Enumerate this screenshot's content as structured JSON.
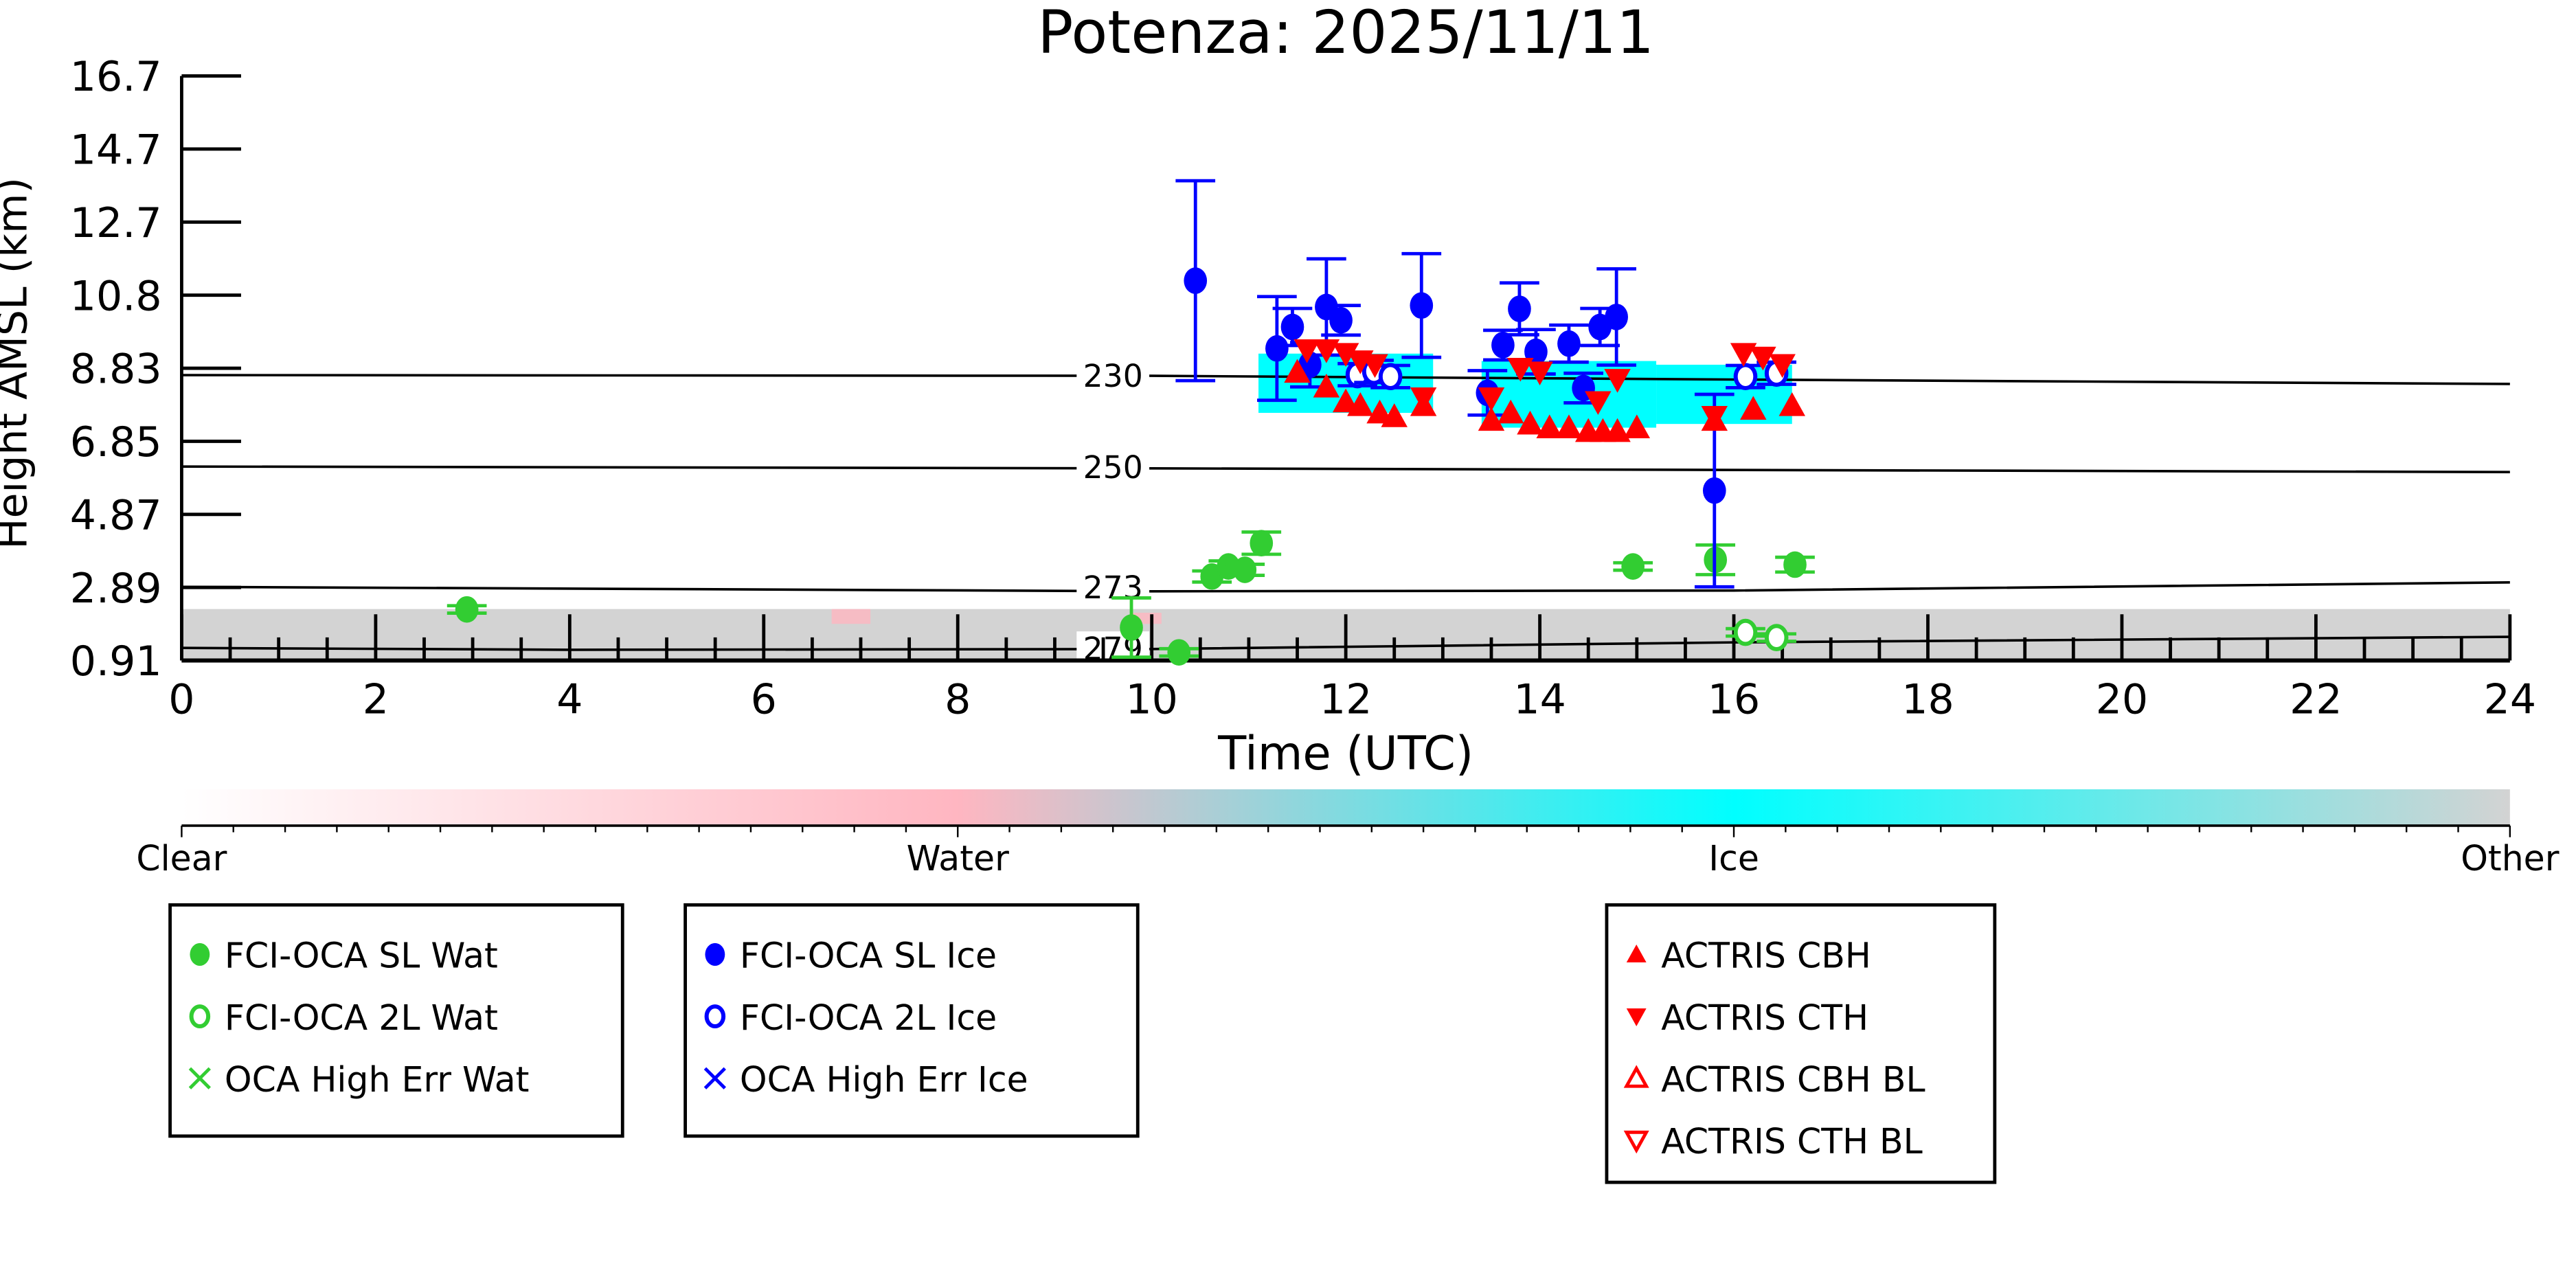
{
  "chart_data": {
    "type": "scatter",
    "title": "Potenza: 2025/11/11",
    "xlabel": "Time (UTC)",
    "ylabel": "Height AMSL (km)",
    "xlim": [
      0,
      24
    ],
    "ylim": [
      0.91,
      16.7
    ],
    "xticks": [
      "0",
      "2",
      "4",
      "6",
      "8",
      "10",
      "12",
      "14",
      "16",
      "18",
      "20",
      "22",
      "24"
    ],
    "yticks": [
      "0.91",
      "2.89",
      "4.87",
      "6.85",
      "8.83",
      "10.8",
      "12.7",
      "14.7",
      "16.7"
    ],
    "grid": false,
    "series": [
      {
        "name": "FCI-OCA SL Wat",
        "marker": "filled-circle",
        "color": "#32cd32",
        "points": [
          [
            2.94,
            2.29,
            0.1
          ],
          [
            9.79,
            1.8,
            0.8
          ],
          [
            10.28,
            1.13,
            0.1
          ],
          [
            10.62,
            3.18,
            0.15
          ],
          [
            10.79,
            3.45,
            0.15
          ],
          [
            10.96,
            3.36,
            0.15
          ],
          [
            11.13,
            4.08,
            0.3
          ],
          [
            14.96,
            3.45,
            0.1
          ],
          [
            15.81,
            3.63,
            0.4
          ],
          [
            16.63,
            3.5,
            0.2
          ]
        ]
      },
      {
        "name": "FCI-OCA 2L Wat",
        "marker": "open-circle",
        "color": "#32cd32",
        "points": [
          [
            16.12,
            1.67,
            0.1
          ],
          [
            16.44,
            1.53,
            0.1
          ]
        ]
      },
      {
        "name": "OCA High Err Wat",
        "marker": "x",
        "color": "#32cd32",
        "points": []
      },
      {
        "name": "FCI-OCA SL Ice",
        "marker": "filled-circle",
        "color": "#0000ff",
        "points": [
          [
            10.45,
            11.17,
            2.7
          ],
          [
            11.29,
            9.34,
            1.4
          ],
          [
            11.45,
            9.92,
            0.5
          ],
          [
            11.63,
            8.9,
            0.6
          ],
          [
            11.8,
            10.46,
            1.3
          ],
          [
            11.95,
            10.1,
            0.4
          ],
          [
            12.78,
            10.5,
            1.4
          ],
          [
            13.46,
            8.14,
            0.6
          ],
          [
            13.62,
            9.43,
            0.4
          ],
          [
            13.79,
            10.41,
            0.7
          ],
          [
            13.96,
            9.25,
            0.6
          ],
          [
            14.3,
            9.47,
            0.5
          ],
          [
            14.45,
            8.27,
            0.4
          ],
          [
            14.62,
            9.92,
            0.5
          ],
          [
            14.79,
            10.19,
            1.3
          ],
          [
            15.8,
            5.5,
            2.6
          ]
        ]
      },
      {
        "name": "FCI-OCA 2L Ice",
        "marker": "open-circle",
        "color": "#0000ff",
        "points": [
          [
            12.12,
            8.63,
            0.3
          ],
          [
            12.29,
            8.72,
            0.3
          ],
          [
            12.46,
            8.58,
            0.3
          ],
          [
            16.12,
            8.58,
            0.3
          ],
          [
            16.44,
            8.67,
            0.3
          ]
        ]
      },
      {
        "name": "OCA High Err Ice",
        "marker": "x",
        "color": "#0000ff",
        "points": []
      },
      {
        "name": "ACTRIS CBH",
        "marker": "triangle-up",
        "color": "#ff0000",
        "points": [
          [
            11.5,
            8.7
          ],
          [
            11.8,
            8.3
          ],
          [
            12.0,
            7.9
          ],
          [
            12.15,
            7.8
          ],
          [
            12.35,
            7.6
          ],
          [
            12.5,
            7.5
          ],
          [
            12.8,
            7.8
          ],
          [
            13.5,
            7.4
          ],
          [
            13.7,
            7.6
          ],
          [
            13.9,
            7.3
          ],
          [
            14.1,
            7.2
          ],
          [
            14.3,
            7.2
          ],
          [
            14.5,
            7.1
          ],
          [
            14.65,
            7.1
          ],
          [
            14.8,
            7.1
          ],
          [
            15.0,
            7.2
          ],
          [
            15.8,
            7.4
          ],
          [
            16.2,
            7.7
          ],
          [
            16.6,
            7.8
          ]
        ]
      },
      {
        "name": "ACTRIS CTH",
        "marker": "triangle-down",
        "color": "#ff0000",
        "points": [
          [
            11.6,
            9.3
          ],
          [
            11.8,
            9.3
          ],
          [
            12.0,
            9.2
          ],
          [
            12.15,
            9.0
          ],
          [
            12.3,
            8.9
          ],
          [
            12.8,
            8.0
          ],
          [
            13.5,
            8.0
          ],
          [
            13.8,
            8.8
          ],
          [
            14.0,
            8.7
          ],
          [
            14.6,
            7.9
          ],
          [
            14.8,
            8.5
          ],
          [
            15.8,
            7.5
          ],
          [
            16.1,
            9.2
          ],
          [
            16.3,
            9.1
          ],
          [
            16.5,
            8.9
          ]
        ]
      },
      {
        "name": "ACTRIS CBH BL",
        "marker": "open-triangle-up",
        "color": "#ff0000",
        "points": []
      },
      {
        "name": "ACTRIS CTH BL",
        "marker": "open-triangle-down",
        "color": "#ff0000",
        "points": []
      }
    ],
    "temperature_contours": [
      {
        "label": "230",
        "points": [
          [
            0,
            8.62
          ],
          [
            10,
            8.6
          ],
          [
            16,
            8.5
          ],
          [
            24,
            8.38
          ]
        ]
      },
      {
        "label": "250",
        "points": [
          [
            0,
            6.15
          ],
          [
            10,
            6.1
          ],
          [
            24,
            6.0
          ]
        ]
      },
      {
        "label": "273",
        "points": [
          [
            0,
            2.9
          ],
          [
            10,
            2.78
          ],
          [
            16,
            2.8
          ],
          [
            24,
            3.02
          ]
        ]
      },
      {
        "label": "279",
        "points": [
          [
            0,
            1.25
          ],
          [
            4,
            1.2
          ],
          [
            10,
            1.22
          ],
          [
            16,
            1.4
          ],
          [
            24,
            1.55
          ]
        ]
      }
    ],
    "contour_label_time": 9.6,
    "cloud_mask": {
      "other_top_km": 2.3,
      "ice_regions": [
        [
          11.1,
          12.9,
          7.6,
          9.2
        ],
        [
          13.4,
          15.2,
          7.2,
          9.0
        ],
        [
          15.2,
          16.6,
          7.3,
          8.9
        ]
      ],
      "water_regions": [
        [
          6.7,
          7.1,
          1.9,
          2.3
        ],
        [
          9.8,
          10.1,
          1.9,
          2.2
        ]
      ]
    },
    "colorbar": {
      "labels": [
        "Clear",
        "Water",
        "Ice",
        "Other"
      ],
      "colors": [
        "#ffffff",
        "#ffb6c1",
        "#00ffff",
        "#d3d3d3"
      ]
    },
    "legend_groups": [
      [
        0,
        1,
        2
      ],
      [
        3,
        4,
        5
      ],
      [
        6,
        7,
        8,
        9
      ]
    ],
    "legend_placement": "below"
  }
}
